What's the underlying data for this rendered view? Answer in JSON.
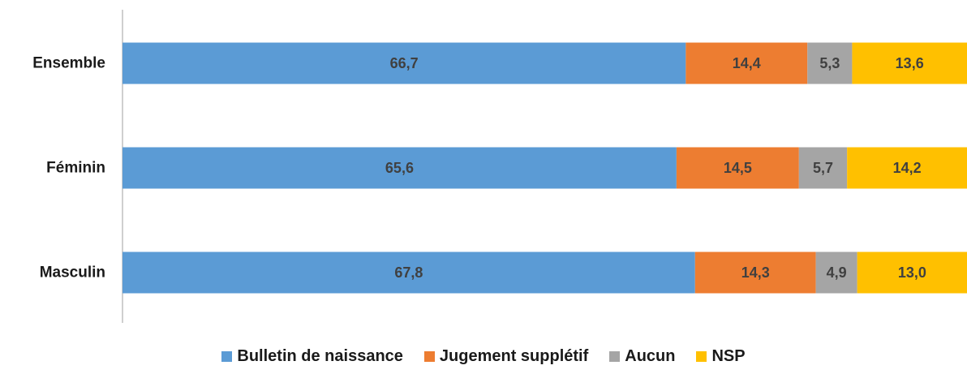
{
  "chart_data": {
    "type": "bar",
    "orientation": "horizontal",
    "stacked": true,
    "categories": [
      "Ensemble",
      "Féminin",
      "Masculin"
    ],
    "series": [
      {
        "name": "Bulletin de naissance",
        "values": [
          66.7,
          65.6,
          67.8
        ],
        "labels": [
          "66,7",
          "65,6",
          "67,8"
        ],
        "color": "#5B9BD5"
      },
      {
        "name": "Jugement supplétif",
        "values": [
          14.4,
          14.5,
          14.3
        ],
        "labels": [
          "14,4",
          "14,5",
          "14,3"
        ],
        "color": "#ED7D31"
      },
      {
        "name": "Aucun",
        "values": [
          5.3,
          5.7,
          4.9
        ],
        "labels": [
          "5,3",
          "5,7",
          "4,9"
        ],
        "color": "#A5A5A5"
      },
      {
        "name": "NSP",
        "values": [
          13.6,
          14.2,
          13.0
        ],
        "labels": [
          "13,6",
          "14,2",
          "13,0"
        ],
        "color": "#FFC000"
      }
    ],
    "xlim": [
      0,
      100
    ],
    "grid": false,
    "legend_position": "bottom"
  }
}
